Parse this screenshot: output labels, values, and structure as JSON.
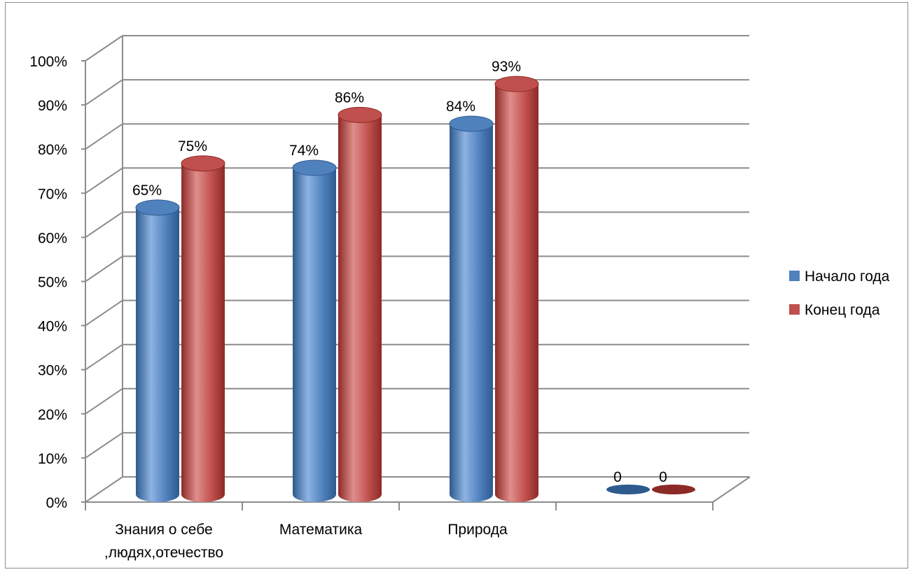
{
  "chart_data": {
    "type": "bar",
    "style": "3d-cylinder",
    "categories": [
      [
        "Знания о себе",
        ",людях,отечество"
      ],
      [
        "Математика"
      ],
      [
        "Природа"
      ],
      [
        ""
      ]
    ],
    "series": [
      {
        "name": "Начало года",
        "values": [
          0.65,
          0.74,
          0.84,
          0
        ],
        "data_labels": [
          "65%",
          "74%",
          "84%",
          "0"
        ],
        "color": "#4f81bd",
        "dark": "#2e5a8e",
        "light": "#8db3e2"
      },
      {
        "name": "Конец года",
        "values": [
          0.75,
          0.86,
          0.93,
          0
        ],
        "data_labels": [
          "75%",
          "86%",
          "93%",
          "0"
        ],
        "color": "#c0504d",
        "dark": "#8c2a28",
        "light": "#e08e8c"
      }
    ],
    "y_ticks": [
      "0%",
      "10%",
      "20%",
      "30%",
      "40%",
      "50%",
      "60%",
      "70%",
      "80%",
      "90%",
      "100%"
    ],
    "ylim": [
      0,
      1
    ],
    "grid": true,
    "legend_position": "right"
  }
}
